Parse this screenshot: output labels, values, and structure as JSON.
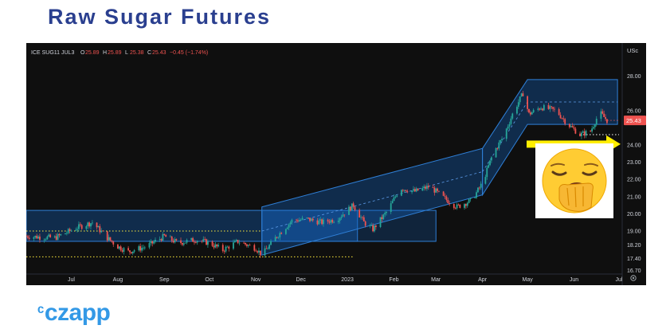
{
  "page": {
    "title": "Raw Sugar Futures",
    "brand": "czapp"
  },
  "legend": {
    "symbol": "ICE SUG11 JUL3",
    "open_label": "O",
    "open": "25.89",
    "high_label": "H",
    "high": "25.89",
    "low_label": "L",
    "low": "25.38",
    "close_label": "C",
    "close": "25.43",
    "change": "−0.45 (−1.74%)"
  },
  "currency_label": "USc",
  "last_price_badge": "25.43",
  "colors": {
    "background": "#0f0f0f",
    "up": "#26a69a",
    "down": "#ef5350",
    "channel_fill": "#1565c0",
    "dotted_support": "#ffeb3b",
    "arrow": "#ffee00",
    "title": "#2a3f8f",
    "brand": "#3399e6"
  },
  "emoji_icon": "yawning-face-icon",
  "chart_data": {
    "type": "candlestick",
    "instrument": "ICE SUG11 JUL3",
    "unit": "USc",
    "x_ticks": [
      "Jul",
      "Aug",
      "Sep",
      "Oct",
      "Nov",
      "Dec",
      "2023",
      "Feb",
      "Mar",
      "Apr",
      "May",
      "Jun",
      "Jul"
    ],
    "y_ticks": [
      "28.00",
      "26.00",
      "25.43",
      "24.00",
      "23.00",
      "22.00",
      "21.00",
      "20.00",
      "19.00",
      "18.20",
      "17.40",
      "16.70"
    ],
    "ylim": [
      16.5,
      29.0
    ],
    "price_path": [
      [
        "2022-06-01",
        18.7
      ],
      [
        "2022-06-20",
        18.6
      ],
      [
        "2022-07-05",
        19.2
      ],
      [
        "2022-07-15",
        19.5
      ],
      [
        "2022-07-25",
        18.6
      ],
      [
        "2022-08-01",
        18.1
      ],
      [
        "2022-08-08",
        17.8
      ],
      [
        "2022-08-20",
        18.1
      ],
      [
        "2022-09-01",
        18.7
      ],
      [
        "2022-09-10",
        18.3
      ],
      [
        "2022-09-22",
        18.5
      ],
      [
        "2022-10-01",
        18.3
      ],
      [
        "2022-10-10",
        17.9
      ],
      [
        "2022-10-20",
        18.4
      ],
      [
        "2022-11-01",
        18.0
      ],
      [
        "2022-11-05",
        17.6
      ],
      [
        "2022-11-15",
        18.7
      ],
      [
        "2022-11-25",
        19.6
      ],
      [
        "2022-12-05",
        19.7
      ],
      [
        "2022-12-15",
        19.5
      ],
      [
        "2022-12-25",
        19.7
      ],
      [
        "2023-01-05",
        20.5
      ],
      [
        "2023-01-12",
        19.5
      ],
      [
        "2023-01-18",
        19.1
      ],
      [
        "2023-01-28",
        20.2
      ],
      [
        "2023-02-05",
        21.5
      ],
      [
        "2023-02-15",
        21.3
      ],
      [
        "2023-02-25",
        21.6
      ],
      [
        "2023-03-05",
        21.0
      ],
      [
        "2023-03-15",
        20.4
      ],
      [
        "2023-03-25",
        20.8
      ],
      [
        "2023-04-01",
        21.8
      ],
      [
        "2023-04-08",
        23.5
      ],
      [
        "2023-04-15",
        24.5
      ],
      [
        "2023-04-22",
        26.0
      ],
      [
        "2023-04-28",
        27.0
      ],
      [
        "2023-05-02",
        25.8
      ],
      [
        "2023-05-10",
        26.2
      ],
      [
        "2023-05-20",
        26.0
      ],
      [
        "2023-05-28",
        25.2
      ],
      [
        "2023-06-05",
        24.6
      ],
      [
        "2023-06-12",
        24.8
      ],
      [
        "2023-06-18",
        25.9
      ],
      [
        "2023-06-23",
        25.43
      ]
    ],
    "lower_channel": {
      "lower_line": [
        [
          "2022-11-05",
          17.6
        ],
        [
          "2023-04-01",
          21.1
        ]
      ],
      "upper_line": [
        [
          "2022-11-05",
          20.4
        ],
        [
          "2023-04-01",
          23.8
        ]
      ]
    },
    "upper_channel": {
      "lower_line": [
        [
          "2023-04-01",
          21.1
        ],
        [
          "2023-05-01",
          25.2
        ],
        [
          "2023-06-30",
          25.2
        ]
      ],
      "upper_line": [
        [
          "2023-04-01",
          23.8
        ],
        [
          "2023-05-01",
          27.8
        ],
        [
          "2023-06-30",
          27.8
        ]
      ]
    },
    "range_box": [
      18.4,
      20.2
    ],
    "support_levels": [
      19.0,
      17.5
    ],
    "last_price": 25.43
  }
}
